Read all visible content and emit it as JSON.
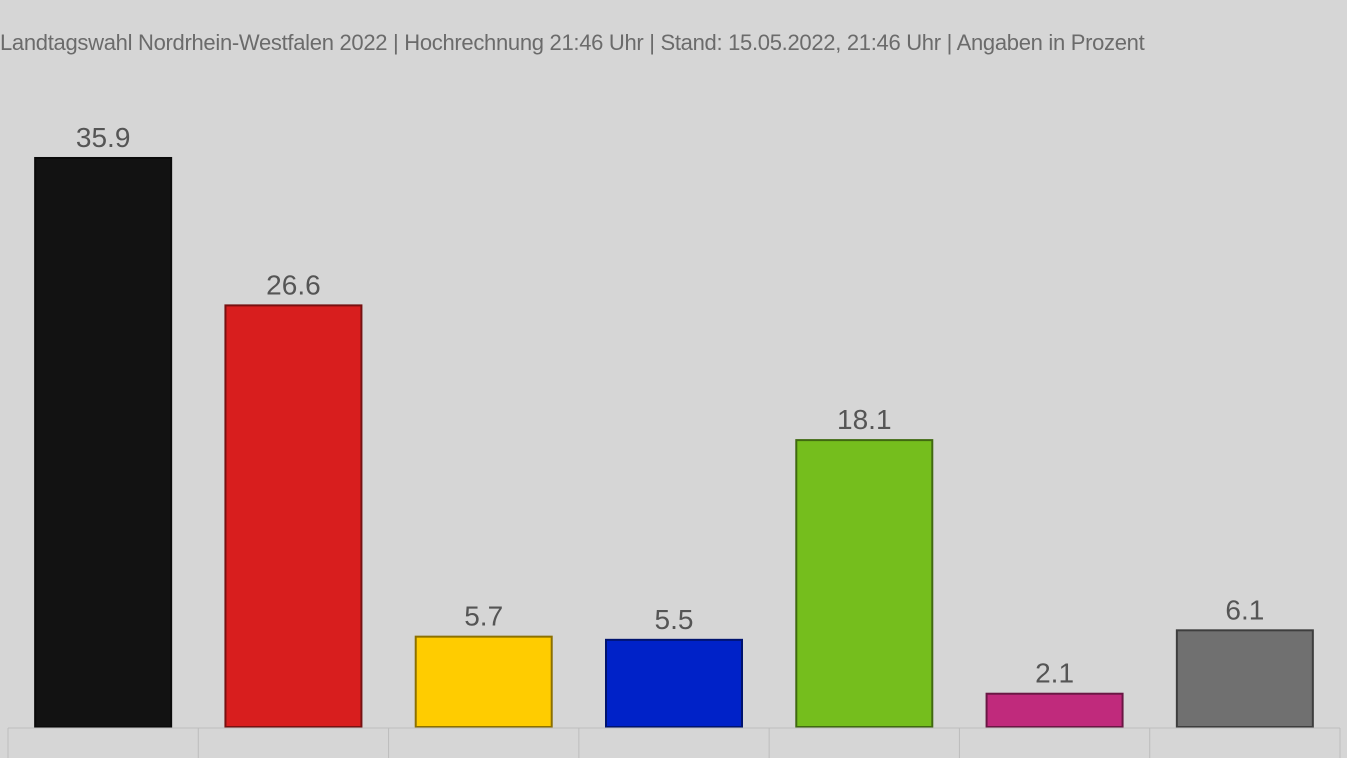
{
  "chart_data": {
    "type": "bar",
    "title": "Landtagswahl Nordrhein-Westfalen 2022 | Hochrechnung 21:46 Uhr | Stand: 15.05.2022, 21:46 Uhr | Angaben in Prozent",
    "categories": [
      "",
      "",
      "",
      "",
      "",
      "",
      ""
    ],
    "values": [
      35.9,
      26.6,
      5.7,
      5.5,
      18.1,
      2.1,
      6.1
    ],
    "value_labels": [
      "35.9",
      "26.6",
      "5.7",
      "5.5",
      "18.1",
      "2.1",
      "6.1"
    ],
    "colors": [
      "#121212",
      "#d81e1e",
      "#ffcc00",
      "#0022c8",
      "#75be1d",
      "#c02a7c",
      "#707070"
    ],
    "ylim": [
      0,
      40
    ],
    "grid": false,
    "legend": "none",
    "xlabel": "",
    "ylabel": ""
  }
}
